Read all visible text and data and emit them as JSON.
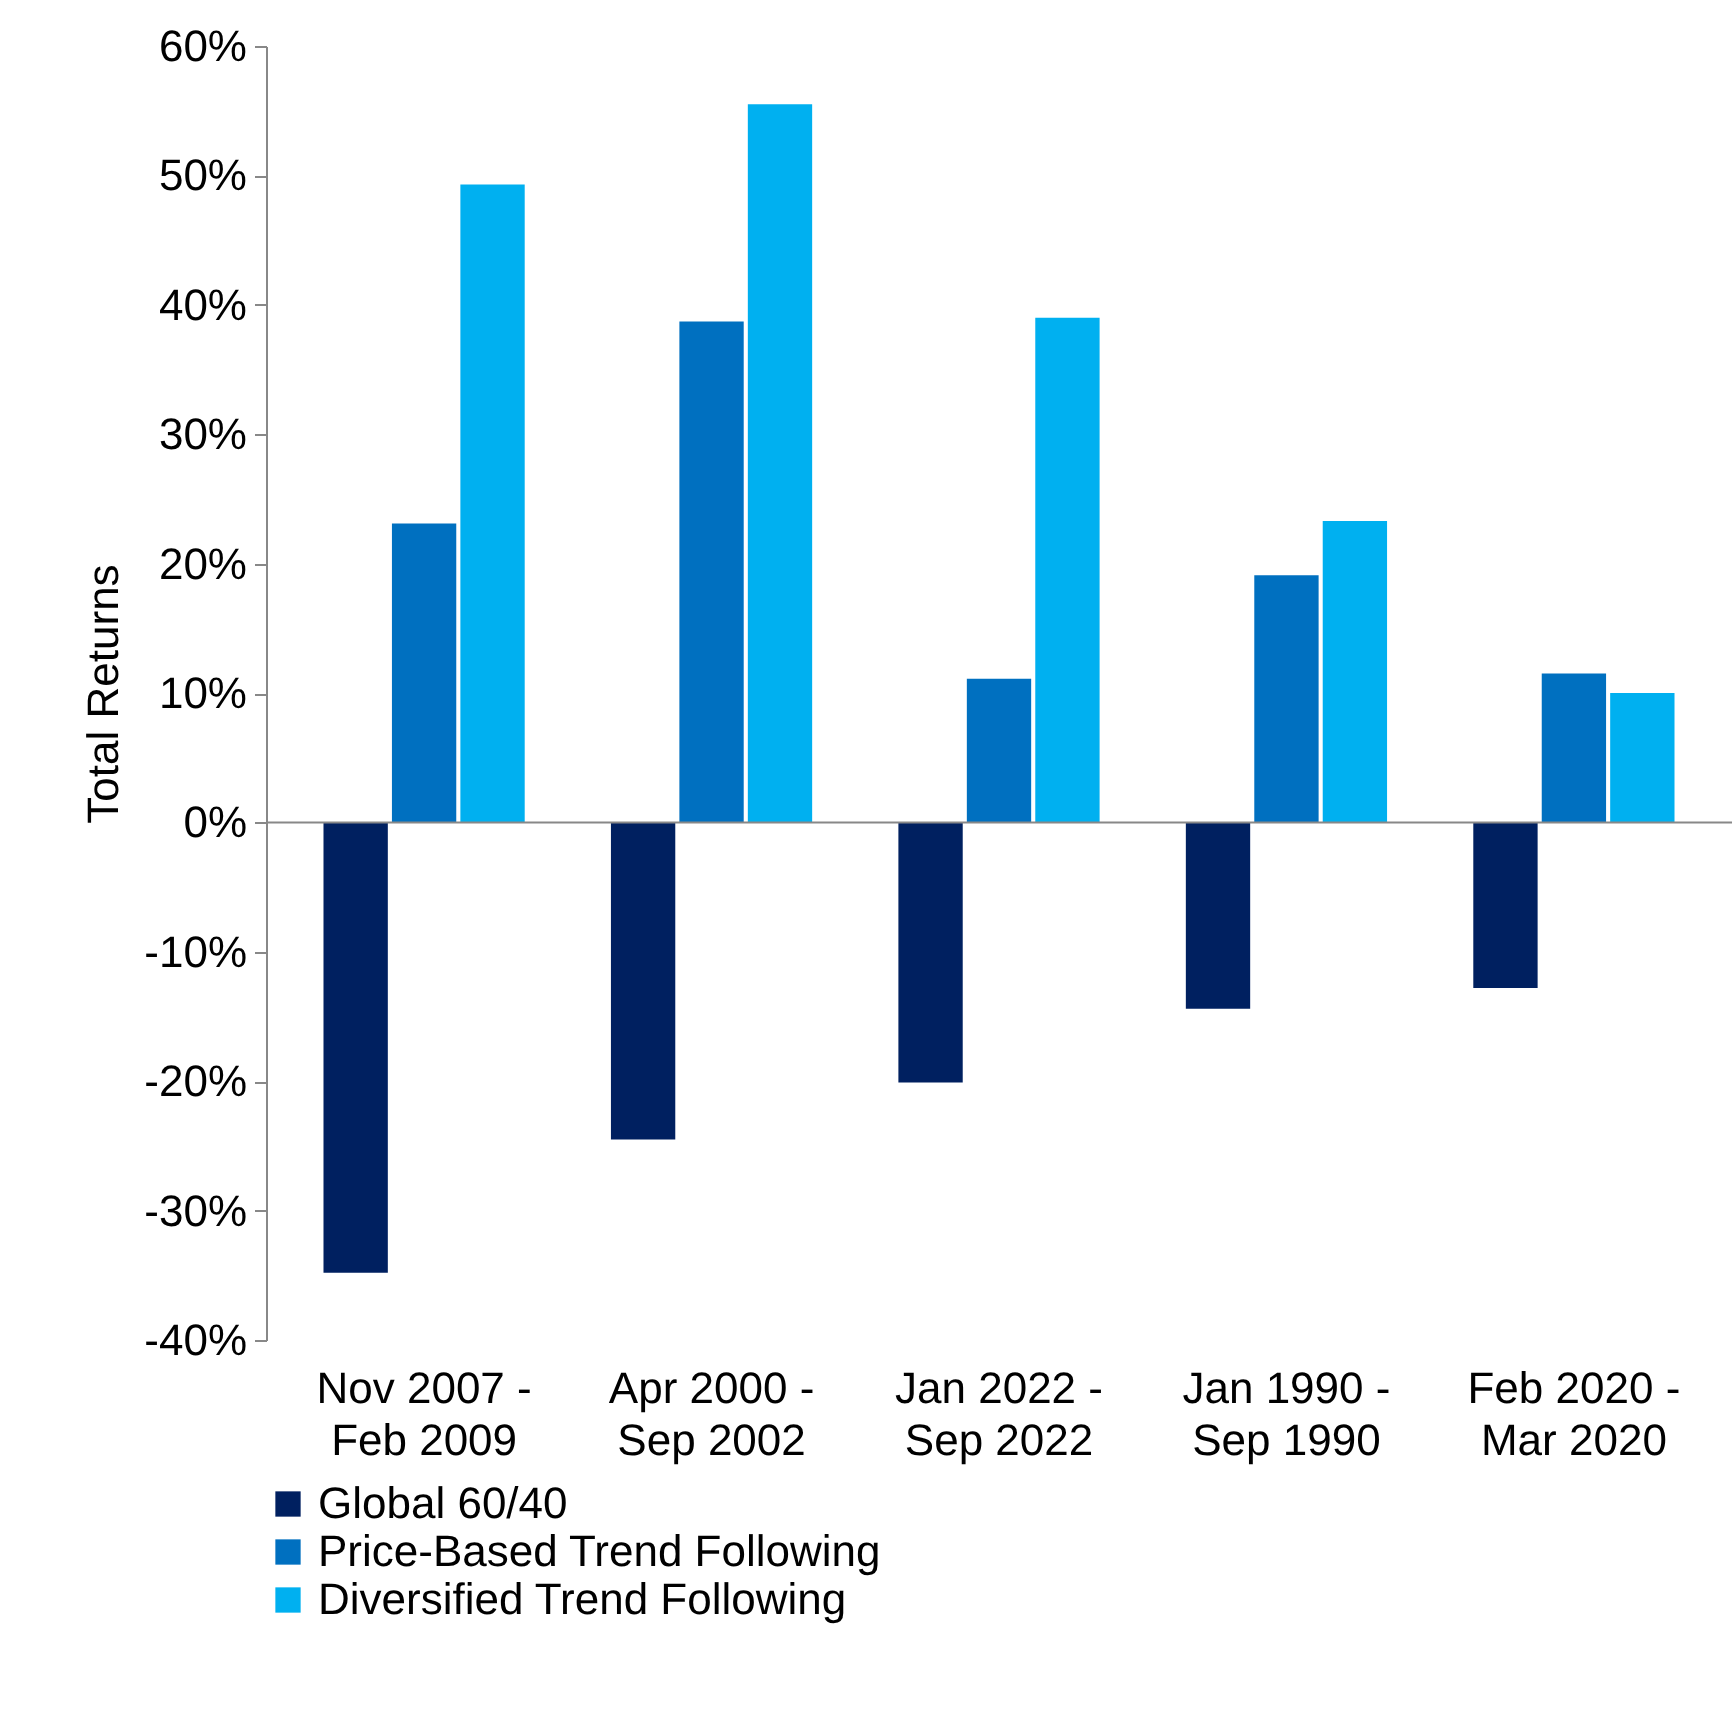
{
  "chart_data": {
    "type": "bar",
    "ylabel": "Total Returns",
    "categories": [
      "Nov 2007 - Feb 2009",
      "Apr 2000 - Sep 2002",
      "Jan 2022 - Sep 2022",
      "Jan 1990 - Sep 1990",
      "Feb 2020 - Mar 2020"
    ],
    "series": [
      {
        "name": "Global 60/40",
        "color": "#002060",
        "values": [
          -34.8,
          -24.5,
          -20.1,
          -14.4,
          -12.8
        ]
      },
      {
        "name": "Price-Based Trend Following",
        "color": "#0070c0",
        "values": [
          23.1,
          38.7,
          11.1,
          19.1,
          11.5
        ]
      },
      {
        "name": "Diversified Trend Following",
        "color": "#00b0f0",
        "values": [
          49.3,
          55.5,
          39.0,
          23.3,
          10.0
        ]
      }
    ],
    "ylim": [
      -40,
      60
    ],
    "yticks": [
      {
        "value": -40,
        "label": "-40%"
      },
      {
        "value": -30,
        "label": "-30%"
      },
      {
        "value": -20,
        "label": "-20%"
      },
      {
        "value": -10,
        "label": "-10%"
      },
      {
        "value": 0,
        "label": "0%"
      },
      {
        "value": 10,
        "label": "10%"
      },
      {
        "value": 20,
        "label": "20%"
      },
      {
        "value": 30,
        "label": "30%"
      },
      {
        "value": 40,
        "label": "40%"
      },
      {
        "value": 50,
        "label": "50%"
      },
      {
        "value": 60,
        "label": "60%"
      }
    ],
    "ref_lines": [
      {
        "axis": "y",
        "value": 0,
        "color": "#888888"
      }
    ],
    "grid": false,
    "legend": "bottom"
  }
}
